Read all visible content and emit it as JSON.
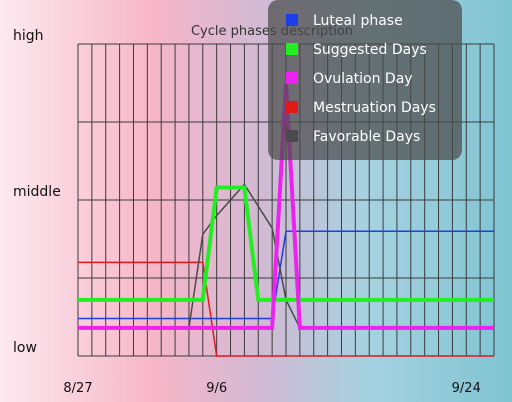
{
  "chart_data": {
    "type": "line",
    "title": "Cycle phases description",
    "y_tick_labels": [
      "low",
      "middle",
      "high"
    ],
    "x_tick_labels": [
      {
        "label": "8/27",
        "day": 0
      },
      {
        "label": "9/6",
        "day": 10
      },
      {
        "label": "9/24",
        "day": 28
      }
    ],
    "x_range": [
      0,
      30
    ],
    "y_range": [
      0,
      2
    ],
    "grid": true,
    "legend_position": "top-right",
    "series": [
      {
        "name": "Luteal phase",
        "color": "#1c3fe8",
        "width": 1.5,
        "points": [
          [
            0,
            0.24
          ],
          [
            14,
            0.24
          ],
          [
            15,
            0.8
          ],
          [
            30,
            0.8
          ]
        ]
      },
      {
        "name": "Suggested Days",
        "color": "#22ee22",
        "width": 4,
        "points": [
          [
            0,
            0.36
          ],
          [
            9,
            0.36
          ],
          [
            10,
            1.08
          ],
          [
            12,
            1.08
          ],
          [
            13,
            0.36
          ],
          [
            30,
            0.36
          ]
        ]
      },
      {
        "name": "Ovulation Day",
        "color": "#ee22ee",
        "width": 4,
        "points": [
          [
            0,
            0.18
          ],
          [
            14,
            0.18
          ],
          [
            15,
            1.74
          ],
          [
            16,
            0.18
          ],
          [
            30,
            0.18
          ]
        ]
      },
      {
        "name": "Mestruation Days",
        "color": "#e01818",
        "width": 1.5,
        "points": [
          [
            0,
            0.6
          ],
          [
            9,
            0.6
          ],
          [
            10,
            0
          ],
          [
            30,
            0
          ]
        ]
      },
      {
        "name": "Favorable Days",
        "color": "#4a4a4a",
        "width": 1.5,
        "points": [
          [
            8,
            0.18
          ],
          [
            9,
            0.78
          ],
          [
            10,
            0.9
          ],
          [
            12,
            1.1
          ],
          [
            14,
            0.82
          ],
          [
            15,
            0.36
          ],
          [
            16,
            0.18
          ]
        ]
      }
    ]
  }
}
